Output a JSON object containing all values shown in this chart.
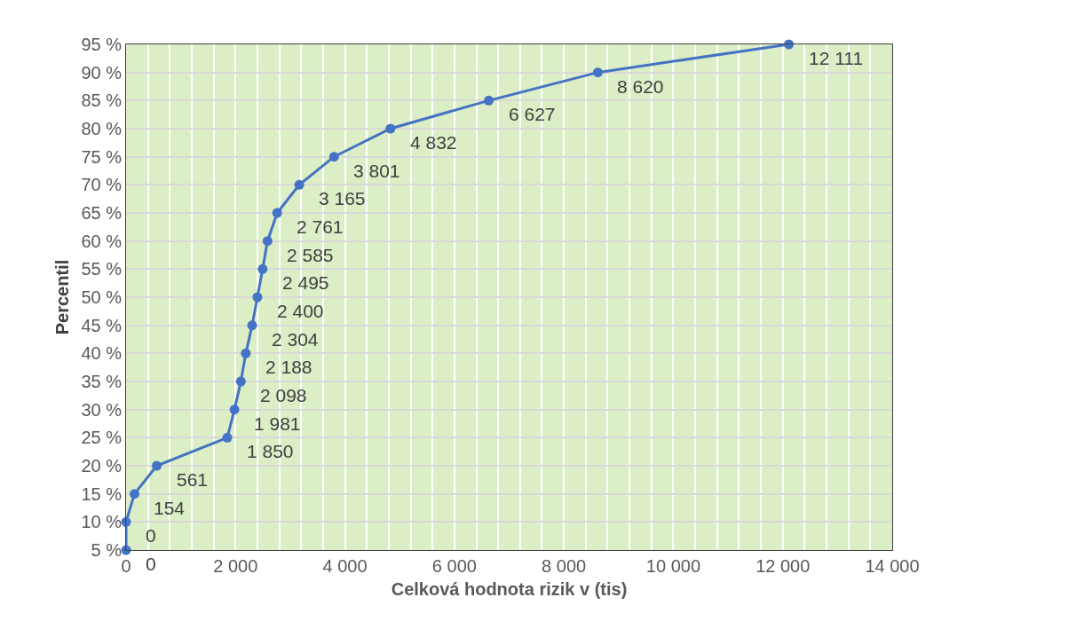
{
  "chart_data": {
    "type": "line",
    "xlabel": "Celková hodnota rizik v (tis)",
    "ylabel": "Percentil",
    "x": [
      0,
      0,
      154,
      561,
      1850,
      1981,
      2098,
      2188,
      2304,
      2400,
      2495,
      2585,
      2761,
      3165,
      3801,
      4832,
      6627,
      8620,
      12111
    ],
    "series": [
      {
        "color": "#4472c4",
        "values": [
          5,
          10,
          15,
          20,
          25,
          30,
          35,
          40,
          45,
          50,
          55,
          60,
          65,
          70,
          75,
          80,
          85,
          90,
          95
        ]
      }
    ],
    "annotations": [
      {
        "text": "0",
        "x": 0,
        "y": 5
      },
      {
        "text": "0",
        "x": 0,
        "y": 10
      },
      {
        "text": "154",
        "x": 154,
        "y": 15
      },
      {
        "text": "561",
        "x": 561,
        "y": 20
      },
      {
        "text": "1 850",
        "x": 1850,
        "y": 25
      },
      {
        "text": "1 981",
        "x": 1981,
        "y": 30
      },
      {
        "text": "2 098",
        "x": 2098,
        "y": 35
      },
      {
        "text": "2 188",
        "x": 2188,
        "y": 40
      },
      {
        "text": "2 304",
        "x": 2304,
        "y": 45
      },
      {
        "text": "2 400",
        "x": 2400,
        "y": 50
      },
      {
        "text": "2 495",
        "x": 2495,
        "y": 55
      },
      {
        "text": "2 585",
        "x": 2585,
        "y": 60
      },
      {
        "text": "2 761",
        "x": 2761,
        "y": 65
      },
      {
        "text": "3 165",
        "x": 3165,
        "y": 70
      },
      {
        "text": "3 801",
        "x": 3801,
        "y": 75
      },
      {
        "text": "4 832",
        "x": 4832,
        "y": 80
      },
      {
        "text": "6 627",
        "x": 6627,
        "y": 85
      },
      {
        "text": "8 620",
        "x": 8620,
        "y": 90
      },
      {
        "text": "12 111",
        "x": 12111,
        "y": 95
      }
    ],
    "xlim": [
      0,
      14000
    ],
    "xticks": [
      {
        "value": 0,
        "label": "0"
      },
      {
        "value": 400,
        "label": null
      },
      {
        "value": 800,
        "label": null
      },
      {
        "value": 1200,
        "label": null
      },
      {
        "value": 1600,
        "label": null
      },
      {
        "value": 2000,
        "label": "2 000"
      },
      {
        "value": 2400,
        "label": null
      },
      {
        "value": 2800,
        "label": null
      },
      {
        "value": 3200,
        "label": null
      },
      {
        "value": 3600,
        "label": null
      },
      {
        "value": 4000,
        "label": "4 000"
      },
      {
        "value": 4400,
        "label": null
      },
      {
        "value": 4800,
        "label": null
      },
      {
        "value": 5200,
        "label": null
      },
      {
        "value": 5600,
        "label": null
      },
      {
        "value": 6000,
        "label": "6 000"
      },
      {
        "value": 6400,
        "label": null
      },
      {
        "value": 6800,
        "label": null
      },
      {
        "value": 7200,
        "label": null
      },
      {
        "value": 7600,
        "label": null
      },
      {
        "value": 8000,
        "label": "8 000"
      },
      {
        "value": 8400,
        "label": null
      },
      {
        "value": 8800,
        "label": null
      },
      {
        "value": 9200,
        "label": null
      },
      {
        "value": 9600,
        "label": null
      },
      {
        "value": 10000,
        "label": "10 000"
      },
      {
        "value": 10400,
        "label": null
      },
      {
        "value": 10800,
        "label": null
      },
      {
        "value": 11200,
        "label": null
      },
      {
        "value": 11600,
        "label": null
      },
      {
        "value": 12000,
        "label": "12 000"
      },
      {
        "value": 12400,
        "label": null
      },
      {
        "value": 12800,
        "label": null
      },
      {
        "value": 13200,
        "label": null
      },
      {
        "value": 13600,
        "label": null
      },
      {
        "value": 14000,
        "label": "14 000"
      }
    ],
    "ylim": [
      5,
      95
    ],
    "yticks": [
      {
        "value": 5,
        "label": "5 %"
      },
      {
        "value": 10,
        "label": "10 %"
      },
      {
        "value": 15,
        "label": "15 %"
      },
      {
        "value": 20,
        "label": "20 %"
      },
      {
        "value": 25,
        "label": "25 %"
      },
      {
        "value": 30,
        "label": "30 %"
      },
      {
        "value": 35,
        "label": "35 %"
      },
      {
        "value": 40,
        "label": "40 %"
      },
      {
        "value": 45,
        "label": "45 %"
      },
      {
        "value": 50,
        "label": "50 %"
      },
      {
        "value": 55,
        "label": "55 %"
      },
      {
        "value": 60,
        "label": "60 %"
      },
      {
        "value": 65,
        "label": "65 %"
      },
      {
        "value": 70,
        "label": "70 %"
      },
      {
        "value": 75,
        "label": "75 %"
      },
      {
        "value": 80,
        "label": "80 %"
      },
      {
        "value": 85,
        "label": "85 %"
      },
      {
        "value": 90,
        "label": "90 %"
      },
      {
        "value": 95,
        "label": "95 %"
      }
    ],
    "grid": true,
    "marker": "circle",
    "line_style": "solid"
  }
}
